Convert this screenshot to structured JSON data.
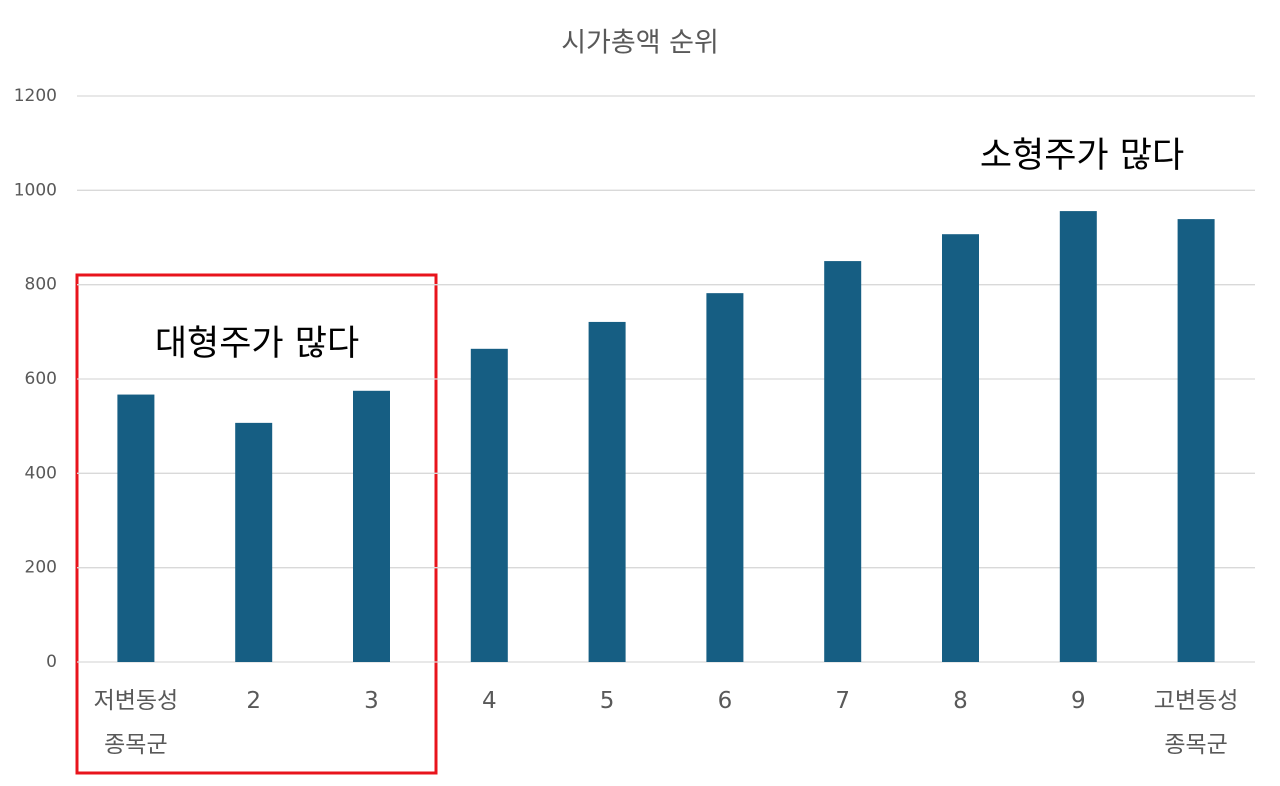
{
  "chart_data": {
    "type": "bar",
    "title": "시가총액 순위",
    "categories": [
      "저변동성\n종목군",
      "2",
      "3",
      "4",
      "5",
      "6",
      "7",
      "8",
      "9",
      "고변동성\n종목군"
    ],
    "values": [
      567,
      507,
      575,
      664,
      721,
      782,
      850,
      907,
      956,
      939
    ],
    "color": "#165e83",
    "ylim": [
      0,
      1200
    ],
    "yticks": [
      0,
      200,
      400,
      600,
      800,
      1000,
      1200
    ],
    "grid": true,
    "annotations": [
      "대형주가 많다",
      "소형주가 많다"
    ]
  }
}
